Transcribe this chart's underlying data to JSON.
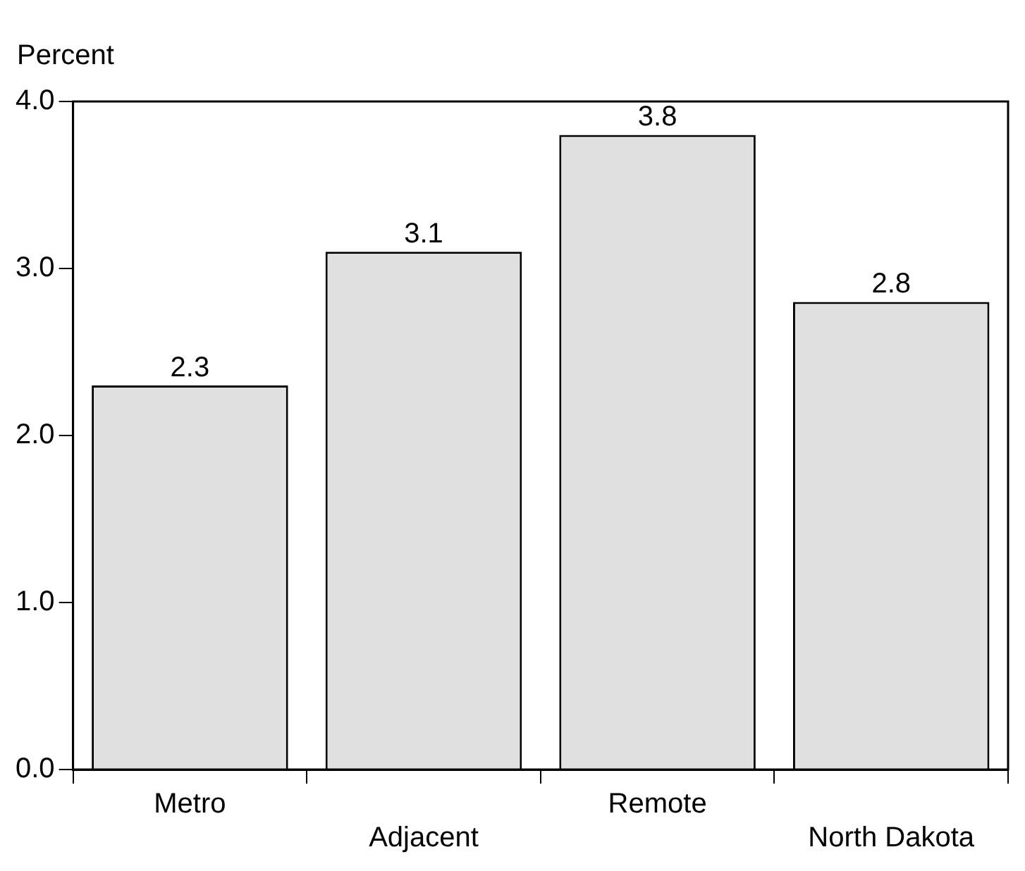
{
  "chart_data": {
    "type": "bar",
    "ylabel": "Percent",
    "categories": [
      "Metro",
      "Adjacent",
      "Remote",
      "North Dakota"
    ],
    "values": [
      2.3,
      3.1,
      3.8,
      2.8
    ],
    "color": "#e0e0e0",
    "ylim": [
      0,
      4
    ],
    "yticks": [
      {
        "value": 0,
        "label": "0.0"
      },
      {
        "value": 1,
        "label": "1.0"
      },
      {
        "value": 2,
        "label": "2.0"
      },
      {
        "value": 3,
        "label": "3.0"
      },
      {
        "value": 4,
        "label": "4.0"
      }
    ],
    "grid": false,
    "legend": false,
    "data_labels": true
  }
}
